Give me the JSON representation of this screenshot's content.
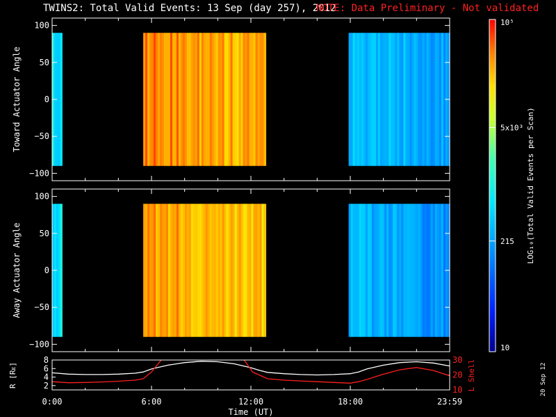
{
  "header": {
    "title": "TWINS2: Total Valid Events: 13 Sep (day 257), 2012",
    "note": "NOTE: Data Preliminary - Not validated"
  },
  "stamp": "20 Sep 12",
  "colorbar": {
    "label": "LOG₁₀(Total Valid Events per Scan)",
    "ticks": [
      "10",
      "215",
      "5x10³",
      "10⁵"
    ],
    "tick_values": [
      10,
      215,
      5000,
      100000
    ]
  },
  "chart_data": [
    {
      "type": "heatmap",
      "ylabel": "Toward Actuator Angle",
      "ylim": [
        -110,
        110
      ],
      "y_ticks": [
        -100,
        -50,
        0,
        50,
        100
      ],
      "y_tick_labels": [
        "−100",
        "−50",
        "0",
        "50",
        "100"
      ],
      "xlim": [
        0,
        24
      ],
      "value_scale": "log10",
      "data_y_range": [
        -90,
        90
      ],
      "blocks": [
        {
          "x": [
            0.0,
            0.6
          ],
          "log_value": 2.8
        },
        {
          "x": [
            5.5,
            12.9
          ],
          "log_value": 4.6
        },
        {
          "x": [
            17.9,
            24.0
          ],
          "log_value": 2.6
        }
      ]
    },
    {
      "type": "heatmap",
      "ylabel": "Away Actuator Angle",
      "ylim": [
        -110,
        110
      ],
      "y_ticks": [
        -100,
        -50,
        0,
        50,
        100
      ],
      "y_tick_labels": [
        "−100",
        "−50",
        "0",
        "50",
        "100"
      ],
      "xlim": [
        0,
        24
      ],
      "value_scale": "log10",
      "data_y_range": [
        -90,
        90
      ],
      "blocks": [
        {
          "x": [
            0.0,
            0.6
          ],
          "log_value": 2.8
        },
        {
          "x": [
            5.5,
            12.9
          ],
          "log_value": 4.5
        },
        {
          "x": [
            17.9,
            24.0
          ],
          "log_value": 2.5
        }
      ]
    },
    {
      "type": "line",
      "ylabel": "R [Rᴇ]",
      "ylabel_right": "L Shell",
      "xlabel": "Time (UT)",
      "xlim": [
        0,
        24
      ],
      "x_ticks": [
        0,
        6,
        12,
        18,
        24
      ],
      "x_tick_labels": [
        "0:00",
        "6:00",
        "12:00",
        "18:00",
        "23:59"
      ],
      "ylim_left": [
        1,
        8
      ],
      "y_ticks_left": [
        2,
        4,
        6,
        8
      ],
      "ylim_right": [
        10,
        30
      ],
      "y_ticks_right": [
        10,
        20,
        30
      ],
      "series": [
        {
          "color": "#ffffff",
          "axis": "left",
          "x": [
            0,
            1,
            2,
            3,
            4,
            5,
            5.5,
            6,
            7,
            8,
            9,
            10,
            11,
            12,
            12.5,
            13,
            14,
            15,
            16,
            17,
            18,
            18.5,
            19,
            20,
            21,
            22,
            23,
            24
          ],
          "y": [
            5.0,
            4.7,
            4.6,
            4.6,
            4.7,
            4.9,
            5.2,
            5.9,
            6.8,
            7.4,
            7.7,
            7.6,
            7.1,
            6.2,
            5.6,
            5.1,
            4.8,
            4.6,
            4.5,
            4.6,
            4.8,
            5.2,
            5.9,
            6.8,
            7.4,
            7.6,
            7.3,
            6.6
          ]
        },
        {
          "color": "#ff2020",
          "axis": "right",
          "x": [
            0,
            1,
            2,
            3,
            4,
            5,
            5.5,
            6,
            6.8,
            11.4,
            12.1,
            13,
            14,
            15,
            16,
            17,
            18,
            18.5,
            19,
            20,
            21,
            22,
            23,
            24
          ],
          "y": [
            15.5,
            14.8,
            15.0,
            15.3,
            15.8,
            16.5,
            17.5,
            22,
            33,
            33,
            22,
            17.5,
            16.5,
            16.0,
            15.5,
            15.0,
            14.5,
            15.5,
            17.0,
            20.5,
            23.5,
            25.0,
            23.0,
            19.5
          ]
        }
      ]
    }
  ]
}
